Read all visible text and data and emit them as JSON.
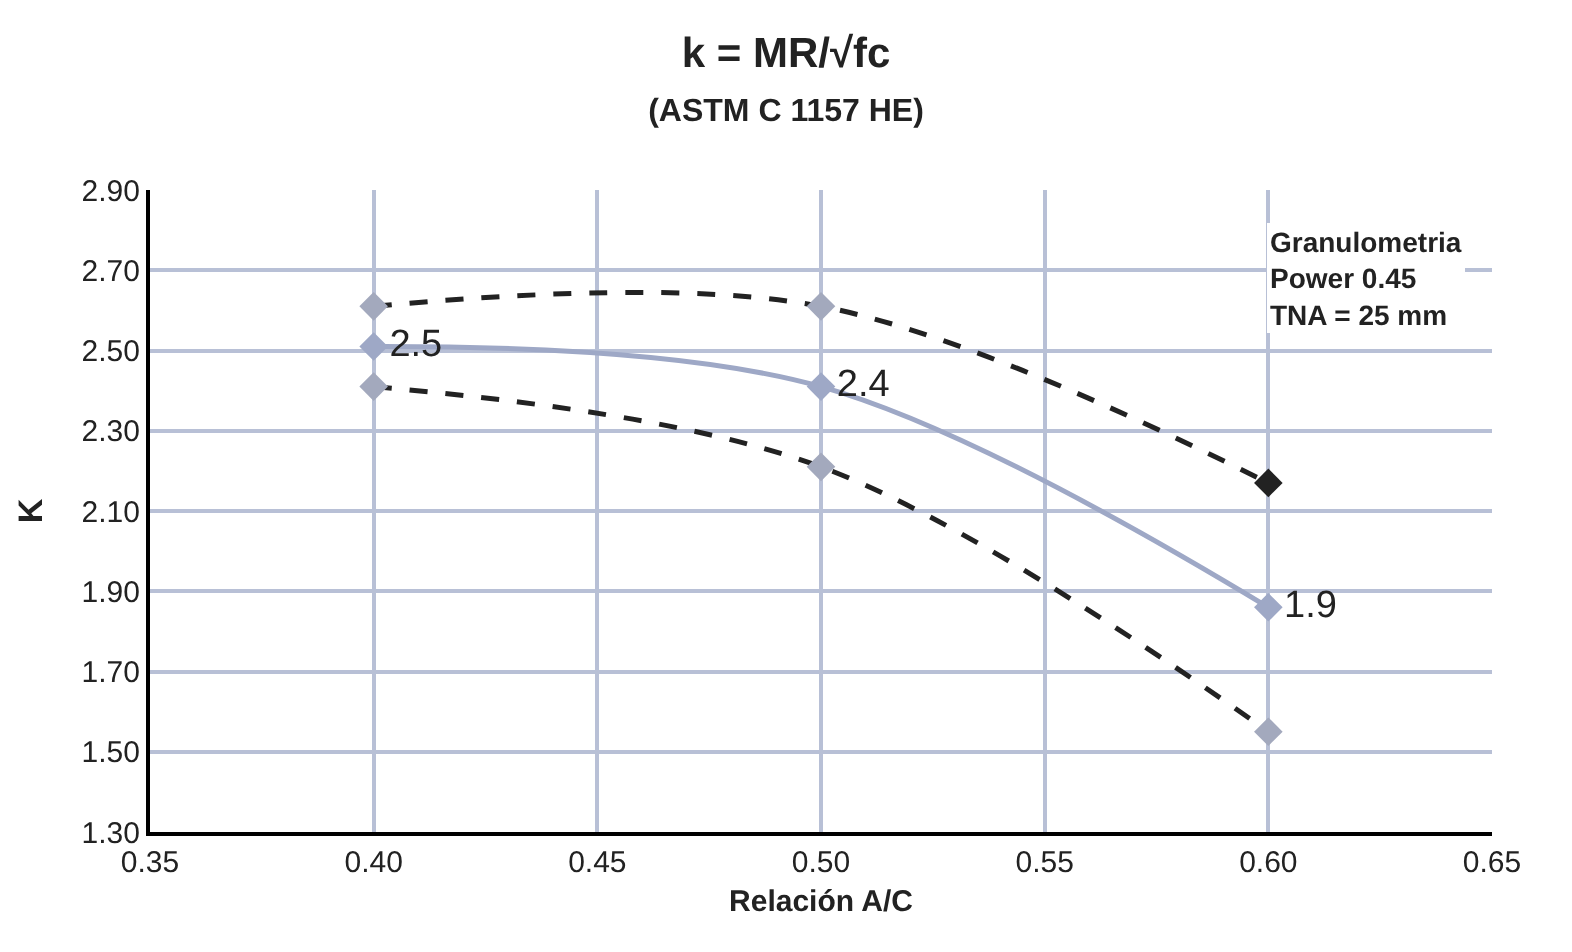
{
  "chart_data": {
    "type": "line",
    "title": "k = MR/√fc",
    "subtitle": "(ASTM C 1157 HE)",
    "xlabel": "Relación A/C",
    "ylabel": "K",
    "x": [
      0.4,
      0.5,
      0.6
    ],
    "series": [
      {
        "color": "#9ea8c6",
        "line_style": "solid",
        "values": [
          2.51,
          2.41,
          1.86
        ],
        "value_labels": [
          "2.5",
          "2.4",
          "1.9"
        ]
      },
      {
        "color": "#222222",
        "colors": [
          "#a3a9bd",
          "#a3a9bd",
          "#222222"
        ],
        "line_style": "dashed",
        "values": [
          2.61,
          2.61,
          2.17
        ]
      },
      {
        "color": "#222222",
        "colors": [
          "#a3a9bd",
          "#a3a9bd",
          "#a3a9bd"
        ],
        "line_style": "dashed",
        "values": [
          2.41,
          2.21,
          1.55
        ]
      }
    ],
    "xlim": [
      0.35,
      0.65
    ],
    "xticks": [
      {
        "value": 0.35,
        "label": "0.35"
      },
      {
        "value": 0.4,
        "label": "0.40"
      },
      {
        "value": 0.45,
        "label": "0.45"
      },
      {
        "value": 0.5,
        "label": "0.50"
      },
      {
        "value": 0.55,
        "label": "0.55"
      },
      {
        "value": 0.6,
        "label": "0.60"
      },
      {
        "value": 0.65,
        "label": "0.65"
      }
    ],
    "ylim": [
      1.3,
      2.9
    ],
    "yticks": [
      {
        "value": 1.3,
        "label": "1.30"
      },
      {
        "value": 1.5,
        "label": "1.50"
      },
      {
        "value": 1.7,
        "label": "1.70"
      },
      {
        "value": 1.9,
        "label": "1.90"
      },
      {
        "value": 2.1,
        "label": "2.10"
      },
      {
        "value": 2.3,
        "label": "2.30"
      },
      {
        "value": 2.5,
        "label": "2.50"
      },
      {
        "value": 2.7,
        "label": "2.70"
      },
      {
        "value": 2.9,
        "label": "2.90"
      }
    ],
    "annotations": [
      "Granulometria\nPower 0.45\nTNA = 25 mm"
    ],
    "grid": true,
    "marker": "diamond"
  }
}
